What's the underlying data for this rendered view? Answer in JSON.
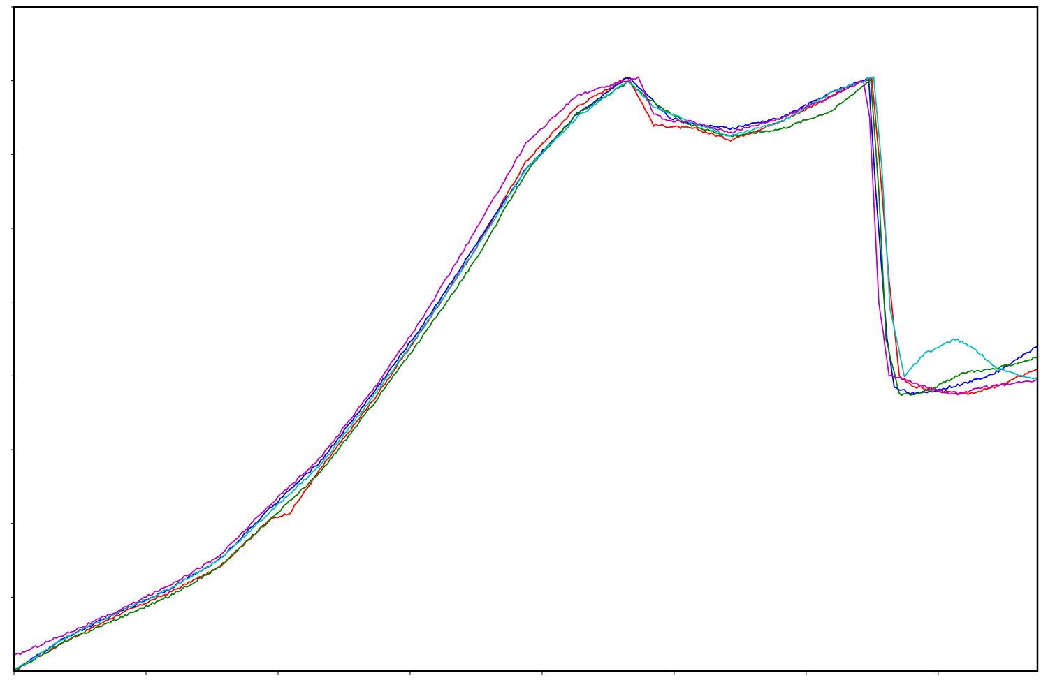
{
  "chart_data": {
    "type": "line",
    "title": "",
    "xlabel": "",
    "ylabel": "",
    "xlim": [
      0,
      100
    ],
    "ylim": [
      0,
      9
    ],
    "xticks": [
      0,
      12.9,
      25.8,
      38.7,
      51.6,
      64.5,
      77.4,
      90.3
    ],
    "yticks": [
      1,
      2,
      3,
      4,
      5,
      6,
      7,
      8,
      9
    ],
    "grid": false,
    "legend": "none",
    "axis_color": "#000000",
    "series": [
      {
        "color": "#ff0000",
        "points": [
          [
            0,
            0
          ],
          [
            5,
            0.4
          ],
          [
            10,
            0.75
          ],
          [
            15,
            1.05
          ],
          [
            20,
            1.4
          ],
          [
            25,
            2.05
          ],
          [
            27,
            2.15
          ],
          [
            30,
            2.75
          ],
          [
            35,
            3.65
          ],
          [
            40,
            4.65
          ],
          [
            45,
            5.7
          ],
          [
            50,
            6.9
          ],
          [
            55,
            7.65
          ],
          [
            60,
            8.05
          ],
          [
            62.5,
            7.4
          ],
          [
            66.5,
            7.35
          ],
          [
            70,
            7.2
          ],
          [
            75,
            7.45
          ],
          [
            80,
            7.8
          ],
          [
            82,
            7.95
          ],
          [
            83.8,
            8.03
          ],
          [
            84.5,
            7.0
          ],
          [
            85.5,
            5.3
          ],
          [
            86.5,
            4.0
          ],
          [
            88,
            3.85
          ],
          [
            90,
            3.8
          ],
          [
            93,
            3.75
          ],
          [
            96,
            3.85
          ],
          [
            100,
            4.1
          ]
        ]
      },
      {
        "color": "#0000ff",
        "points": [
          [
            0,
            0
          ],
          [
            5,
            0.45
          ],
          [
            10,
            0.78
          ],
          [
            15,
            1.1
          ],
          [
            20,
            1.5
          ],
          [
            25,
            2.2
          ],
          [
            30,
            2.85
          ],
          [
            35,
            3.75
          ],
          [
            40,
            4.7
          ],
          [
            45,
            5.75
          ],
          [
            50,
            6.8
          ],
          [
            55,
            7.55
          ],
          [
            60,
            8.05
          ],
          [
            62,
            7.8
          ],
          [
            64,
            7.5
          ],
          [
            66,
            7.42
          ],
          [
            70,
            7.35
          ],
          [
            75,
            7.5
          ],
          [
            80,
            7.85
          ],
          [
            83.5,
            8.03
          ],
          [
            84.2,
            6.5
          ],
          [
            85.3,
            4.5
          ],
          [
            86,
            3.85
          ],
          [
            88,
            3.75
          ],
          [
            90,
            3.8
          ],
          [
            93,
            3.9
          ],
          [
            96,
            4.05
          ],
          [
            100,
            4.4
          ]
        ]
      },
      {
        "color": "#008000",
        "points": [
          [
            0,
            0
          ],
          [
            5,
            0.4
          ],
          [
            10,
            0.7
          ],
          [
            15,
            1.0
          ],
          [
            20,
            1.4
          ],
          [
            25,
            2.05
          ],
          [
            30,
            2.7
          ],
          [
            35,
            3.6
          ],
          [
            40,
            4.55
          ],
          [
            45,
            5.55
          ],
          [
            50,
            6.75
          ],
          [
            55,
            7.55
          ],
          [
            60,
            7.98
          ],
          [
            63,
            7.65
          ],
          [
            66,
            7.4
          ],
          [
            70,
            7.25
          ],
          [
            75,
            7.35
          ],
          [
            80,
            7.6
          ],
          [
            83.7,
            8.02
          ],
          [
            84.5,
            6.5
          ],
          [
            85.2,
            4.5
          ],
          [
            86.5,
            3.75
          ],
          [
            88,
            3.75
          ],
          [
            90,
            3.85
          ],
          [
            93,
            4.05
          ],
          [
            96,
            4.1
          ],
          [
            100,
            4.25
          ]
        ]
      },
      {
        "color": "#00bfbf",
        "points": [
          [
            0,
            0
          ],
          [
            5,
            0.45
          ],
          [
            10,
            0.78
          ],
          [
            15,
            1.1
          ],
          [
            20,
            1.5
          ],
          [
            25,
            2.15
          ],
          [
            30,
            2.8
          ],
          [
            35,
            3.7
          ],
          [
            40,
            4.65
          ],
          [
            45,
            5.7
          ],
          [
            50,
            6.8
          ],
          [
            55,
            7.5
          ],
          [
            60,
            8.0
          ],
          [
            62.5,
            7.65
          ],
          [
            66,
            7.45
          ],
          [
            70,
            7.25
          ],
          [
            75,
            7.45
          ],
          [
            80,
            7.85
          ],
          [
            84,
            8.05
          ],
          [
            84.8,
            6.8
          ],
          [
            85.6,
            4.9
          ],
          [
            87,
            4.0
          ],
          [
            89,
            4.3
          ],
          [
            92,
            4.5
          ],
          [
            94,
            4.35
          ],
          [
            96,
            4.1
          ],
          [
            100,
            3.95
          ]
        ]
      },
      {
        "color": "#bf00bf",
        "points": [
          [
            0,
            0.2
          ],
          [
            5,
            0.5
          ],
          [
            10,
            0.8
          ],
          [
            15,
            1.15
          ],
          [
            20,
            1.55
          ],
          [
            25,
            2.25
          ],
          [
            30,
            2.9
          ],
          [
            35,
            3.8
          ],
          [
            40,
            4.8
          ],
          [
            45,
            5.95
          ],
          [
            50,
            7.15
          ],
          [
            55,
            7.8
          ],
          [
            61,
            8.05
          ],
          [
            62.5,
            7.55
          ],
          [
            64,
            7.45
          ],
          [
            66,
            7.45
          ],
          [
            70,
            7.3
          ],
          [
            75,
            7.5
          ],
          [
            80,
            7.8
          ],
          [
            83,
            8.0
          ],
          [
            83.6,
            7.5
          ],
          [
            84.5,
            5.0
          ],
          [
            85.5,
            4.0
          ],
          [
            87,
            3.95
          ],
          [
            89,
            3.85
          ],
          [
            92,
            3.75
          ],
          [
            95,
            3.85
          ],
          [
            98,
            3.9
          ],
          [
            100,
            3.95
          ]
        ]
      }
    ]
  }
}
